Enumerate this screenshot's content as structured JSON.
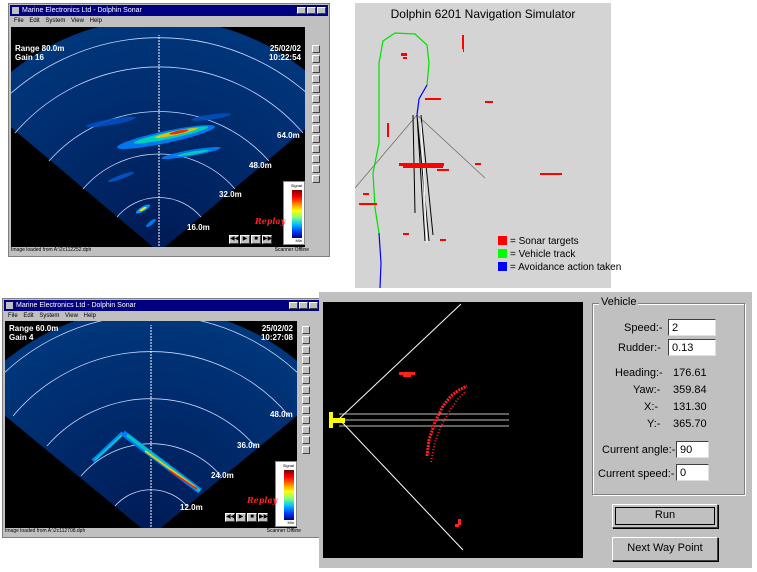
{
  "sonar_top": {
    "title": "Marine Electronics Ltd - Dolphin Sonar",
    "menu": [
      "File",
      "Edit",
      "System",
      "View",
      "Help"
    ],
    "range": "Range 80.0m",
    "gain": "Gain 16",
    "date": "25/02/02",
    "time": "10:22:54",
    "ring_labels": [
      "16.0m",
      "32.0m",
      "48.0m",
      "64.0m"
    ],
    "replay": "Replay",
    "colorbar_top": "Signal",
    "colorbar_bottom": "Min",
    "status_left": "Image loaded from A:\\2c112252.dph",
    "status_right": "Scanner Offline"
  },
  "sonar_bottom": {
    "title": "Marine Electronics Ltd - Dolphin Sonar",
    "menu": [
      "File",
      "Edit",
      "System",
      "View",
      "Help"
    ],
    "range": "Range 60.0m",
    "gain": "Gain 4",
    "date": "25/02/02",
    "time": "10:27:08",
    "ring_labels": [
      "12.0m",
      "24.0m",
      "36.0m",
      "48.0m"
    ],
    "replay": "Replay",
    "colorbar_top": "Signal",
    "colorbar_bottom": "Min",
    "status_left": "Image loaded from A:\\2c112708.dph",
    "status_right": "Scanner Offline"
  },
  "nav_sim": {
    "title": "Dolphin 6201 Navigation Simulator",
    "legend": [
      {
        "label": "= Sonar targets",
        "color": "#ff0000"
      },
      {
        "label": "= Vehicle track",
        "color": "#00ff00"
      },
      {
        "label": "= Avoidance action taken",
        "color": "#0000ff"
      }
    ]
  },
  "vehicle_panel": {
    "group_title": "Vehicle",
    "speed_label": "Speed:-",
    "speed_value": "2",
    "rudder_label": "Rudder:-",
    "rudder_value": "0.13",
    "heading_label": "Heading:-",
    "heading_value": "176.61",
    "yaw_label": "Yaw:-",
    "yaw_value": "359.84",
    "x_label": "X:-",
    "x_value": "131.30",
    "y_label": "Y:-",
    "y_value": "365.70",
    "current_angle_label": "Current angle:-",
    "current_angle_value": "90",
    "current_speed_label": "Current speed:-",
    "current_speed_value": "0",
    "run_label": "Run",
    "next_waypoint_label": "Next Way Point"
  }
}
